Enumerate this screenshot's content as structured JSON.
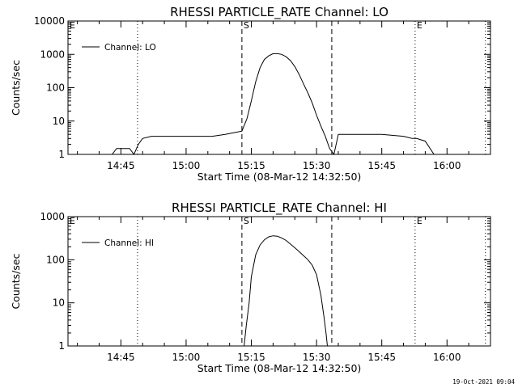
{
  "timestamp": "19-Oct-2021 09:04",
  "chart_data": [
    {
      "type": "line",
      "title": "RHESSI PARTICLE_RATE Channel: LO",
      "xlabel": "Start Time (08-Mar-12 14:32:50)",
      "ylabel": "Counts/sec",
      "legend": "Channel: LO",
      "legend_position": "top-left",
      "y_scale": "log",
      "xlim": [
        "14:32:50",
        "16:10:00"
      ],
      "ylim": [
        1,
        10000
      ],
      "x_ticks": [
        "14:45",
        "15:00",
        "15:15",
        "15:30",
        "15:45",
        "16:00"
      ],
      "y_ticks": [
        "1",
        "10",
        "100",
        "1000",
        "10000"
      ],
      "markers": [
        {
          "label": "E",
          "time": "14:32:50",
          "style": "dotted"
        },
        {
          "label": "",
          "time": "14:48:50",
          "style": "dotted"
        },
        {
          "label": "S",
          "time": "15:12:50",
          "style": "dashed"
        },
        {
          "label": "",
          "time": "15:33:30",
          "style": "dashed"
        },
        {
          "label": "E",
          "time": "15:52:40",
          "style": "dotted"
        },
        {
          "label": "",
          "time": "16:08:50",
          "style": "dotted"
        }
      ],
      "series": [
        {
          "name": "Channel: LO",
          "x": [
            "14:32:50",
            "14:34:00",
            "14:35:00",
            "14:36:00",
            "14:37:00",
            "14:38:00",
            "14:39:00",
            "14:40:00",
            "14:41:00",
            "14:42:00",
            "14:43:00",
            "14:44:00",
            "14:45:00",
            "14:46:00",
            "14:47:00",
            "14:48:00",
            "14:49:00",
            "14:50:00",
            "14:52:00",
            "14:55:00",
            "14:58:00",
            "15:00:00",
            "15:03:00",
            "15:06:00",
            "15:09:00",
            "15:11:00",
            "15:12:50",
            "15:14:00",
            "15:15:00",
            "15:16:00",
            "15:17:00",
            "15:18:00",
            "15:19:00",
            "15:20:00",
            "15:21:00",
            "15:22:00",
            "15:23:00",
            "15:24:00",
            "15:25:00",
            "15:26:00",
            "15:27:00",
            "15:28:00",
            "15:29:00",
            "15:30:00",
            "15:31:00",
            "15:32:00",
            "15:33:00",
            "15:34:00",
            "15:35:00",
            "15:36:00",
            "15:40:00",
            "15:45:00",
            "15:50:00",
            "15:52:00",
            "15:53:00",
            "15:55:00",
            "15:57:00",
            "15:59:00",
            "16:00:00",
            "16:01:00",
            "16:02:00",
            "16:03:00",
            "16:04:00",
            "16:05:00",
            "16:06:00",
            "16:07:00",
            "16:08:00",
            "16:09:00",
            "16:10:00"
          ],
          "y": [
            1,
            1,
            1,
            1,
            1,
            1,
            1,
            1,
            1,
            1,
            1,
            1.5,
            1.5,
            1.5,
            1.5,
            1,
            2,
            3,
            3.5,
            3.5,
            3.5,
            3.5,
            3.5,
            3.5,
            4,
            4.5,
            5,
            12,
            40,
            150,
            400,
            700,
            900,
            1050,
            1050,
            1000,
            850,
            650,
            430,
            250,
            130,
            70,
            35,
            15,
            7,
            3.5,
            1.5,
            1,
            4,
            4,
            4,
            4,
            3.5,
            3,
            3,
            2.5,
            1,
            1,
            1,
            1,
            1,
            1,
            1,
            1,
            1,
            1,
            1,
            1,
            1
          ]
        }
      ]
    },
    {
      "type": "line",
      "title": "RHESSI PARTICLE_RATE Channel: HI",
      "xlabel": "Start Time (08-Mar-12 14:32:50)",
      "ylabel": "Counts/sec",
      "legend": "Channel: HI",
      "legend_position": "top-left",
      "y_scale": "log",
      "xlim": [
        "14:32:50",
        "16:10:00"
      ],
      "ylim": [
        1,
        1000
      ],
      "x_ticks": [
        "14:45",
        "15:00",
        "15:15",
        "15:30",
        "15:45",
        "16:00"
      ],
      "y_ticks": [
        "1",
        "10",
        "100",
        "1000"
      ],
      "markers": [
        {
          "label": "E",
          "time": "14:32:50",
          "style": "dotted"
        },
        {
          "label": "",
          "time": "14:48:50",
          "style": "dotted"
        },
        {
          "label": "S",
          "time": "15:12:50",
          "style": "dashed"
        },
        {
          "label": "",
          "time": "15:33:30",
          "style": "dashed"
        },
        {
          "label": "E",
          "time": "15:52:40",
          "style": "dotted"
        },
        {
          "label": "",
          "time": "16:08:50",
          "style": "dotted"
        }
      ],
      "series": [
        {
          "name": "Channel: HI",
          "x": [
            "15:13:20",
            "15:13:50",
            "15:14:30",
            "15:15:00",
            "15:16:00",
            "15:17:00",
            "15:18:00",
            "15:19:00",
            "15:20:00",
            "15:21:00",
            "15:22:00",
            "15:23:00",
            "15:24:00",
            "15:25:00",
            "15:26:00",
            "15:27:00",
            "15:28:00",
            "15:29:00",
            "15:30:00",
            "15:31:00",
            "15:31:40",
            "15:32:10",
            "15:32:30"
          ],
          "y": [
            1,
            3,
            10,
            40,
            130,
            220,
            290,
            340,
            360,
            350,
            320,
            280,
            230,
            190,
            155,
            125,
            100,
            75,
            45,
            15,
            5,
            2,
            1
          ]
        }
      ]
    }
  ]
}
